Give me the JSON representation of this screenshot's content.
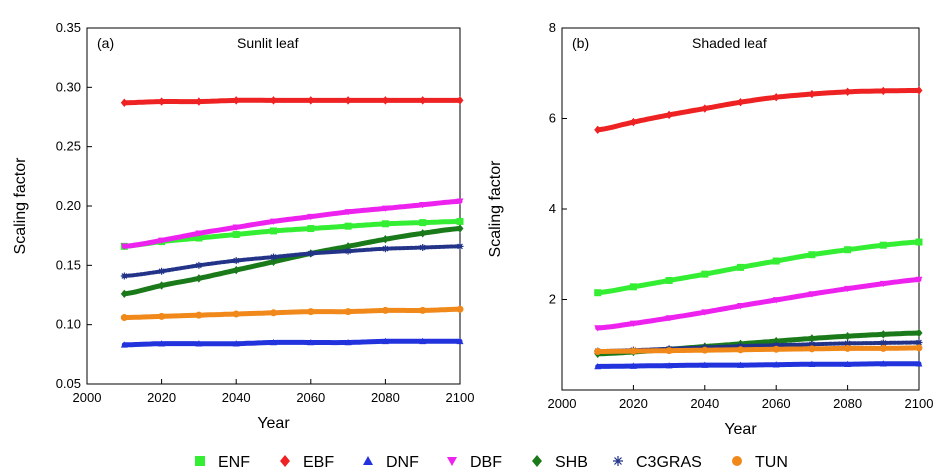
{
  "chart_data": [
    {
      "type": "line",
      "panel_label": "(a)",
      "title": "Sunlit leaf",
      "xlabel": "Year",
      "ylabel": "Scaling factor",
      "xlim": [
        2000,
        2100
      ],
      "ylim": [
        0.05,
        0.35
      ],
      "xticks": [
        "2000",
        "2020",
        "2040",
        "2060",
        "2080",
        "2100"
      ],
      "yticks": [
        "0.05",
        "0.10",
        "0.15",
        "0.20",
        "0.25",
        "0.30",
        "0.35"
      ],
      "grid": false,
      "x": [
        2010,
        2020,
        2030,
        2040,
        2050,
        2060,
        2070,
        2080,
        2090,
        2100
      ],
      "series": [
        {
          "name": "ENF",
          "color": "#33ee33",
          "marker": "square",
          "values": [
            0.166,
            0.17,
            0.173,
            0.176,
            0.179,
            0.181,
            0.183,
            0.185,
            0.186,
            0.187
          ]
        },
        {
          "name": "EBF",
          "color": "#ee2222",
          "marker": "diamond",
          "values": [
            0.287,
            0.288,
            0.288,
            0.289,
            0.289,
            0.289,
            0.289,
            0.289,
            0.289,
            0.289
          ]
        },
        {
          "name": "DNF",
          "color": "#2233dd",
          "marker": "triangle-up",
          "values": [
            0.083,
            0.084,
            0.084,
            0.084,
            0.085,
            0.085,
            0.085,
            0.086,
            0.086,
            0.086
          ]
        },
        {
          "name": "DBF",
          "color": "#ee22ee",
          "marker": "triangle-down",
          "values": [
            0.166,
            0.171,
            0.177,
            0.182,
            0.187,
            0.191,
            0.195,
            0.198,
            0.201,
            0.204
          ]
        },
        {
          "name": "SHB",
          "color": "#1a7a1a",
          "marker": "diamond",
          "values": [
            0.126,
            0.133,
            0.139,
            0.146,
            0.153,
            0.16,
            0.166,
            0.172,
            0.177,
            0.181
          ]
        },
        {
          "name": "C3GRAS",
          "color": "#223388",
          "marker": "star",
          "values": [
            0.141,
            0.145,
            0.15,
            0.154,
            0.157,
            0.16,
            0.162,
            0.164,
            0.165,
            0.166
          ]
        },
        {
          "name": "TUN",
          "color": "#f0881a",
          "marker": "circle",
          "values": [
            0.106,
            0.107,
            0.108,
            0.109,
            0.11,
            0.111,
            0.111,
            0.112,
            0.112,
            0.113
          ]
        }
      ]
    },
    {
      "type": "line",
      "panel_label": "(b)",
      "title": "Shaded leaf",
      "xlabel": "Year",
      "ylabel": "Scaling factor",
      "xlim": [
        2000,
        2100
      ],
      "ylim": [
        0,
        8
      ],
      "xticks": [
        "2000",
        "2020",
        "2040",
        "2060",
        "2080",
        "2100"
      ],
      "yticks": [
        "2",
        "4",
        "6",
        "8"
      ],
      "grid": false,
      "x": [
        2010,
        2020,
        2030,
        2040,
        2050,
        2060,
        2070,
        2080,
        2090,
        2100
      ],
      "series": [
        {
          "name": "ENF",
          "color": "#33ee33",
          "marker": "square",
          "values": [
            2.15,
            2.28,
            2.42,
            2.56,
            2.71,
            2.85,
            2.99,
            3.1,
            3.2,
            3.27
          ]
        },
        {
          "name": "EBF",
          "color": "#ee2222",
          "marker": "diamond",
          "values": [
            5.75,
            5.92,
            6.08,
            6.22,
            6.36,
            6.47,
            6.54,
            6.59,
            6.61,
            6.62
          ]
        },
        {
          "name": "DNF",
          "color": "#2233dd",
          "marker": "triangle-up",
          "values": [
            0.52,
            0.53,
            0.54,
            0.55,
            0.55,
            0.56,
            0.57,
            0.57,
            0.58,
            0.58
          ]
        },
        {
          "name": "DBF",
          "color": "#ee22ee",
          "marker": "triangle-down",
          "values": [
            1.37,
            1.47,
            1.59,
            1.72,
            1.86,
            1.99,
            2.12,
            2.24,
            2.35,
            2.44
          ]
        },
        {
          "name": "SHB",
          "color": "#1a7a1a",
          "marker": "diamond",
          "values": [
            0.8,
            0.84,
            0.9,
            0.96,
            1.02,
            1.08,
            1.14,
            1.19,
            1.23,
            1.26
          ]
        },
        {
          "name": "C3GRAS",
          "color": "#223388",
          "marker": "star",
          "values": [
            0.86,
            0.88,
            0.91,
            0.94,
            0.97,
            0.99,
            1.01,
            1.03,
            1.04,
            1.05
          ]
        },
        {
          "name": "TUN",
          "color": "#f0881a",
          "marker": "circle",
          "values": [
            0.85,
            0.86,
            0.87,
            0.88,
            0.89,
            0.9,
            0.91,
            0.92,
            0.92,
            0.93
          ]
        }
      ]
    }
  ],
  "legend": {
    "placement": "bottom",
    "items": [
      {
        "name": "ENF",
        "color": "#33ee33",
        "marker": "square"
      },
      {
        "name": "EBF",
        "color": "#ee2222",
        "marker": "diamond"
      },
      {
        "name": "DNF",
        "color": "#2233dd",
        "marker": "triangle-up"
      },
      {
        "name": "DBF",
        "color": "#ee22ee",
        "marker": "triangle-down"
      },
      {
        "name": "SHB",
        "color": "#1a7a1a",
        "marker": "diamond"
      },
      {
        "name": "C3GRAS",
        "color": "#223388",
        "marker": "star"
      },
      {
        "name": "TUN",
        "color": "#f0881a",
        "marker": "circle"
      }
    ]
  }
}
